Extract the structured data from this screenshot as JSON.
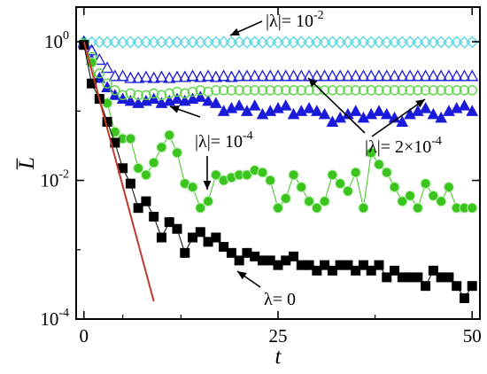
{
  "chart_data": {
    "type": "scatter",
    "title": "",
    "xlabel": "t",
    "ylabel": "L̅",
    "xlim": [
      -1,
      51
    ],
    "ylim_log10": [
      -4,
      0.5
    ],
    "yscale": "log",
    "grid": false,
    "legend": "none",
    "x_ticks": [
      {
        "value": 0,
        "label": "0"
      },
      {
        "value": 25,
        "label": "25"
      },
      {
        "value": 50,
        "label": "50"
      }
    ],
    "y_ticks": [
      {
        "value": 1,
        "base": "10",
        "exp": "0"
      },
      {
        "value": 0.01,
        "base": "10",
        "exp": "-2"
      },
      {
        "value": 0.0001,
        "base": "10",
        "exp": "-4"
      }
    ],
    "annotations": [
      {
        "id": "l1",
        "parts": [
          {
            "t": "|λ|= 10"
          },
          {
            "t": "-2",
            "sup": true
          }
        ]
      },
      {
        "id": "l2",
        "parts": [
          {
            "t": "|λ|= 10"
          },
          {
            "t": "-4",
            "sup": true
          }
        ]
      },
      {
        "id": "l3",
        "parts": [
          {
            "t": "|λ|= 2×10"
          },
          {
            "t": "-4",
            "sup": true
          }
        ]
      },
      {
        "id": "l4",
        "parts": [
          {
            "t": "λ= 0"
          }
        ]
      }
    ],
    "series": [
      {
        "marker": "diamond-open",
        "color": "#4fd6e0",
        "line": false,
        "x": [
          0,
          1,
          2,
          3,
          4,
          5,
          6,
          7,
          8,
          9,
          10,
          11,
          12,
          13,
          14,
          15,
          16,
          17,
          18,
          19,
          20,
          21,
          22,
          23,
          24,
          25,
          26,
          27,
          28,
          29,
          30,
          31,
          32,
          33,
          34,
          35,
          36,
          37,
          38,
          39,
          40,
          41,
          42,
          43,
          44,
          45,
          46,
          47,
          48,
          49,
          50
        ],
        "y": [
          1.0,
          0.98,
          0.99,
          0.98,
          0.99,
          0.98,
          0.99,
          0.98,
          0.99,
          0.98,
          0.99,
          0.98,
          0.99,
          0.98,
          0.99,
          0.98,
          0.99,
          0.98,
          0.99,
          0.98,
          0.99,
          0.98,
          0.99,
          0.98,
          0.99,
          0.98,
          0.99,
          0.98,
          0.99,
          0.98,
          0.99,
          0.98,
          0.99,
          0.98,
          0.99,
          0.98,
          0.99,
          0.98,
          0.99,
          0.98,
          0.99,
          0.98,
          0.99,
          0.98,
          0.99,
          0.98,
          0.99,
          0.98,
          0.99,
          0.98,
          0.99
        ]
      },
      {
        "marker": "triangle-open",
        "color": "#1a1adb",
        "line": false,
        "x": [
          0,
          1,
          2,
          3,
          4,
          5,
          6,
          7,
          8,
          9,
          10,
          11,
          12,
          13,
          14,
          15,
          16,
          17,
          18,
          19,
          20,
          21,
          22,
          23,
          24,
          25,
          26,
          27,
          28,
          29,
          30,
          31,
          32,
          33,
          34,
          35,
          36,
          37,
          38,
          39,
          40,
          41,
          42,
          43,
          44,
          45,
          46,
          47,
          48,
          49,
          50
        ],
        "y": [
          1.0,
          0.75,
          0.55,
          0.42,
          0.32,
          0.32,
          0.3,
          0.3,
          0.31,
          0.3,
          0.31,
          0.3,
          0.31,
          0.31,
          0.32,
          0.31,
          0.32,
          0.31,
          0.32,
          0.31,
          0.32,
          0.32,
          0.32,
          0.32,
          0.32,
          0.32,
          0.32,
          0.32,
          0.32,
          0.32,
          0.32,
          0.32,
          0.32,
          0.32,
          0.32,
          0.32,
          0.32,
          0.32,
          0.32,
          0.32,
          0.32,
          0.32,
          0.32,
          0.32,
          0.32,
          0.32,
          0.32,
          0.32,
          0.32,
          0.32,
          0.32
        ]
      },
      {
        "marker": "triangle-filled",
        "color": "#1a1adb",
        "line": false,
        "x": [
          0,
          1,
          2,
          3,
          4,
          5,
          6,
          7,
          8,
          9,
          10,
          11,
          12,
          13,
          14,
          15,
          16,
          17,
          18,
          19,
          20,
          21,
          22,
          23,
          24,
          25,
          26,
          27,
          28,
          29,
          30,
          31,
          32,
          33,
          34,
          35,
          36,
          37,
          38,
          39,
          40,
          41,
          42,
          43,
          44,
          45,
          46,
          47,
          48,
          49,
          50
        ],
        "y": [
          0.95,
          0.55,
          0.3,
          0.22,
          0.17,
          0.15,
          0.14,
          0.13,
          0.14,
          0.15,
          0.13,
          0.14,
          0.15,
          0.14,
          0.15,
          0.16,
          0.14,
          0.13,
          0.1,
          0.11,
          0.12,
          0.1,
          0.12,
          0.09,
          0.1,
          0.11,
          0.12,
          0.09,
          0.1,
          0.11,
          0.1,
          0.09,
          0.07,
          0.08,
          0.09,
          0.1,
          0.08,
          0.09,
          0.1,
          0.09,
          0.08,
          0.07,
          0.09,
          0.1,
          0.11,
          0.09,
          0.08,
          0.1,
          0.11,
          0.12,
          0.1
        ]
      },
      {
        "marker": "circle-open",
        "color": "#5ed44a",
        "line": false,
        "x": [
          0,
          1,
          2,
          3,
          4,
          5,
          6,
          7,
          8,
          9,
          10,
          11,
          12,
          13,
          14,
          15,
          16,
          17,
          18,
          19,
          20,
          21,
          22,
          23,
          24,
          25,
          26,
          27,
          28,
          29,
          30,
          31,
          32,
          33,
          34,
          35,
          36,
          37,
          38,
          39,
          40,
          41,
          42,
          43,
          44,
          45,
          46,
          47,
          48,
          49,
          50
        ],
        "y": [
          0.95,
          0.6,
          0.35,
          0.25,
          0.2,
          0.17,
          0.18,
          0.17,
          0.17,
          0.18,
          0.17,
          0.18,
          0.19,
          0.18,
          0.19,
          0.2,
          0.19,
          0.2,
          0.2,
          0.2,
          0.2,
          0.2,
          0.2,
          0.2,
          0.2,
          0.2,
          0.2,
          0.2,
          0.2,
          0.2,
          0.2,
          0.2,
          0.2,
          0.2,
          0.2,
          0.2,
          0.2,
          0.2,
          0.2,
          0.2,
          0.2,
          0.2,
          0.2,
          0.2,
          0.2,
          0.2,
          0.2,
          0.2,
          0.2,
          0.2,
          0.2
        ]
      },
      {
        "marker": "circle-filled",
        "color": "#3cc41e",
        "line": true,
        "x": [
          0,
          1,
          2,
          3,
          4,
          5,
          6,
          7,
          8,
          9,
          10,
          11,
          12,
          13,
          14,
          15,
          16,
          17,
          18,
          19,
          20,
          21,
          22,
          23,
          24,
          25,
          26,
          27,
          28,
          29,
          30,
          31,
          32,
          33,
          34,
          35,
          36,
          37,
          38,
          39,
          40,
          41,
          42,
          43,
          44,
          45,
          46,
          47,
          48,
          49,
          50
        ],
        "y": [
          0.9,
          0.5,
          0.15,
          0.13,
          0.05,
          0.04,
          0.04,
          0.015,
          0.012,
          0.018,
          0.03,
          0.045,
          0.025,
          0.009,
          0.008,
          0.004,
          0.005,
          0.012,
          0.01,
          0.011,
          0.012,
          0.012,
          0.014,
          0.013,
          0.01,
          0.004,
          0.0055,
          0.012,
          0.008,
          0.005,
          0.004,
          0.005,
          0.012,
          0.009,
          0.007,
          0.013,
          0.004,
          0.025,
          0.017,
          0.013,
          0.008,
          0.005,
          0.006,
          0.004,
          0.009,
          0.006,
          0.005,
          0.008,
          0.004,
          0.004,
          0.004
        ]
      },
      {
        "marker": "square-filled",
        "color": "#000000",
        "line": true,
        "x": [
          0,
          1,
          2,
          3,
          4,
          5,
          6,
          7,
          8,
          9,
          10,
          11,
          12,
          13,
          14,
          15,
          16,
          17,
          18,
          19,
          20,
          21,
          22,
          23,
          24,
          25,
          26,
          27,
          28,
          29,
          30,
          31,
          32,
          33,
          34,
          35,
          36,
          37,
          38,
          39,
          40,
          41,
          42,
          43,
          44,
          45,
          46,
          47,
          48,
          49,
          50
        ],
        "y": [
          0.9,
          0.25,
          0.15,
          0.07,
          0.035,
          0.015,
          0.009,
          0.004,
          0.005,
          0.003,
          0.0015,
          0.0025,
          0.002,
          0.0009,
          0.0015,
          0.0018,
          0.0013,
          0.0015,
          0.0011,
          0.0009,
          0.0007,
          0.0009,
          0.0008,
          0.0007,
          0.0007,
          0.0006,
          0.0007,
          0.0008,
          0.0006,
          0.0006,
          0.0005,
          0.0006,
          0.0005,
          0.0006,
          0.0006,
          0.0005,
          0.0006,
          0.0005,
          0.0006,
          0.0004,
          0.0005,
          0.0004,
          0.0004,
          0.0004,
          0.0003,
          0.0005,
          0.0004,
          0.0004,
          0.0003,
          0.0002,
          0.0003
        ]
      },
      {
        "marker": "none",
        "color": "#c0392b",
        "line": true,
        "x": [
          0,
          9
        ],
        "y": [
          1.0,
          0.00018
        ]
      }
    ]
  }
}
